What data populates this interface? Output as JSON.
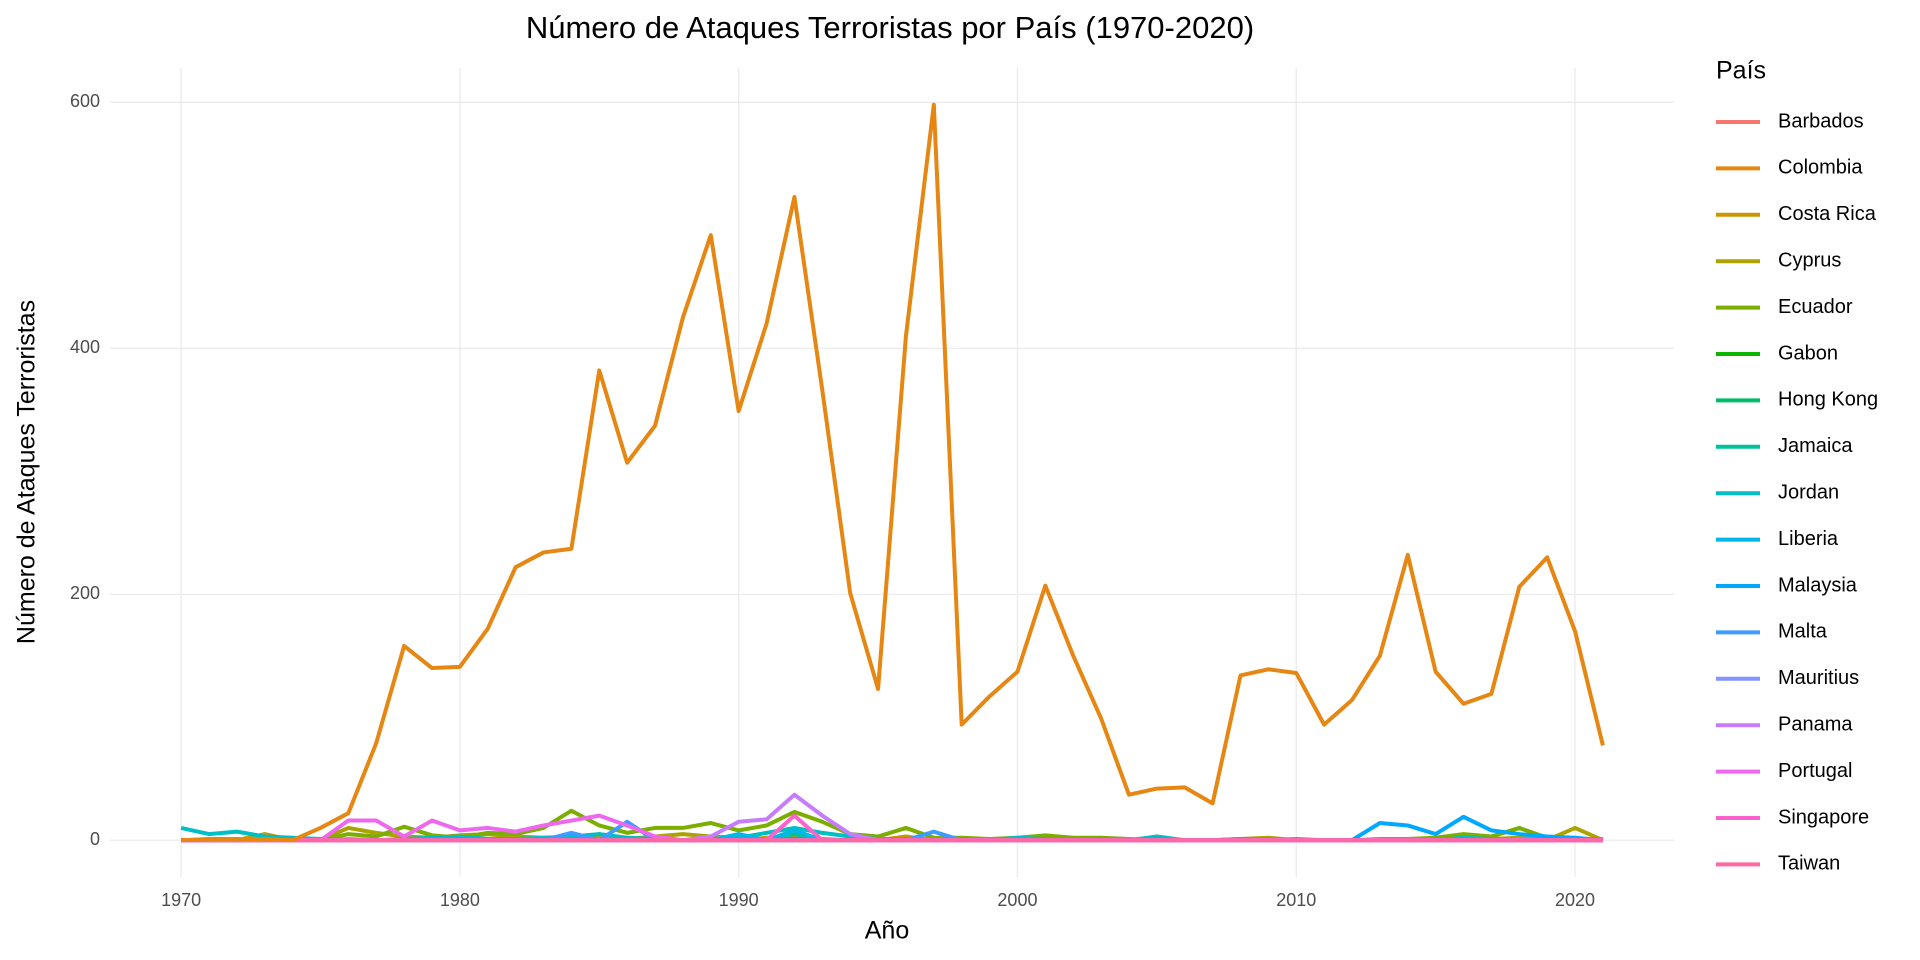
{
  "chart_data": {
    "type": "line",
    "title": "Número de Ataques Terroristas por País (1970-2020)",
    "x_label": "Año",
    "y_label": "Número de Ataques Terroristas",
    "legend_title": "País",
    "legend_position": "right",
    "grid": true,
    "xlim": [
      1967.45,
      2023.55
    ],
    "ylim": [
      -29.9,
      627.9
    ],
    "xticks": [
      1970,
      1980,
      1990,
      2000,
      2010,
      2020
    ],
    "yticks": [
      0,
      200,
      400,
      600
    ],
    "x": [
      1970,
      1971,
      1972,
      1973,
      1974,
      1975,
      1976,
      1977,
      1978,
      1979,
      1980,
      1981,
      1982,
      1983,
      1984,
      1985,
      1986,
      1987,
      1988,
      1989,
      1990,
      1991,
      1992,
      1993,
      1994,
      1995,
      1996,
      1997,
      1998,
      1999,
      2000,
      2001,
      2002,
      2003,
      2004,
      2005,
      2006,
      2007,
      2008,
      2009,
      2010,
      2011,
      2012,
      2013,
      2014,
      2015,
      2016,
      2017,
      2018,
      2019,
      2020,
      2021
    ],
    "series": [
      {
        "name": "Barbados",
        "color": "#F8766D",
        "values": [
          0,
          0,
          0,
          0,
          0,
          0,
          1,
          0,
          0,
          0,
          0,
          0,
          0,
          0,
          0,
          0,
          0,
          0,
          0,
          0,
          0,
          0,
          0,
          0,
          0,
          0,
          0,
          0,
          0,
          0,
          0,
          0,
          0,
          0,
          0,
          0,
          0,
          0,
          0,
          0,
          0,
          0,
          0,
          0,
          0,
          0,
          0,
          0,
          0,
          0,
          0,
          0
        ]
      },
      {
        "name": "Colombia",
        "color": "#E68613",
        "values": [
          0,
          1,
          1,
          1,
          0,
          10,
          22,
          79,
          158,
          140,
          141,
          172,
          222,
          234,
          237,
          382,
          307,
          337,
          425,
          492,
          349,
          420,
          523,
          366,
          201,
          123,
          410,
          598,
          94,
          117,
          137,
          207,
          150,
          99,
          37,
          42,
          43,
          30,
          134,
          139,
          136,
          94,
          114,
          150,
          232,
          137,
          111,
          119,
          206,
          230,
          170,
          77
        ]
      },
      {
        "name": "Costa Rica",
        "color": "#CD9600",
        "values": [
          0,
          0,
          0,
          5,
          0,
          0,
          0,
          0,
          0,
          0,
          0,
          0,
          0,
          0,
          0,
          5,
          0,
          0,
          0,
          0,
          0,
          2,
          3,
          0,
          0,
          0,
          3,
          0,
          0,
          0,
          0,
          0,
          0,
          0,
          0,
          0,
          0,
          0,
          0,
          0,
          0,
          0,
          0,
          0,
          0,
          0,
          0,
          0,
          0,
          0,
          0,
          0
        ]
      },
      {
        "name": "Cyprus",
        "color": "#ABA300",
        "values": [
          0,
          0,
          0,
          0,
          0,
          0,
          10,
          6,
          3,
          2,
          4,
          5,
          3,
          2,
          2,
          2,
          1,
          3,
          5,
          3,
          2,
          1,
          1,
          1,
          0,
          0,
          1,
          0,
          0,
          0,
          1,
          1,
          0,
          0,
          0,
          0,
          0,
          0,
          1,
          2,
          0,
          0,
          0,
          0,
          1,
          0,
          0,
          1,
          2,
          0,
          10,
          0
        ]
      },
      {
        "name": "Ecuador",
        "color": "#7CAE00",
        "values": [
          0,
          0,
          0,
          0,
          0,
          0,
          5,
          3,
          11,
          4,
          2,
          6,
          5,
          10,
          24,
          12,
          6,
          10,
          10,
          14,
          8,
          12,
          23,
          15,
          5,
          3,
          10,
          2,
          2,
          1,
          2,
          4,
          2,
          2,
          1,
          0,
          0,
          0,
          1,
          1,
          0,
          0,
          0,
          1,
          1,
          2,
          5,
          3,
          10,
          2,
          1,
          0
        ]
      },
      {
        "name": "Gabon",
        "color": "#0CB702",
        "values": [
          0,
          0,
          0,
          0,
          0,
          0,
          0,
          0,
          0,
          0,
          0,
          0,
          0,
          0,
          0,
          0,
          0,
          0,
          0,
          0,
          0,
          0,
          0,
          0,
          0,
          0,
          0,
          0,
          0,
          0,
          0,
          0,
          0,
          0,
          0,
          0,
          0,
          0,
          0,
          0,
          0,
          0,
          0,
          0,
          0,
          0,
          0,
          0,
          0,
          0,
          0,
          0
        ]
      },
      {
        "name": "Hong Kong",
        "color": "#00BE67",
        "values": [
          0,
          0,
          0,
          0,
          0,
          0,
          0,
          0,
          0,
          0,
          0,
          0,
          0,
          0,
          0,
          0,
          0,
          0,
          0,
          0,
          0,
          0,
          1,
          0,
          0,
          0,
          0,
          0,
          0,
          0,
          0,
          0,
          0,
          0,
          0,
          0,
          0,
          0,
          0,
          0,
          0,
          0,
          0,
          0,
          0,
          0,
          0,
          0,
          0,
          0,
          0,
          0
        ]
      },
      {
        "name": "Jamaica",
        "color": "#00C19A",
        "values": [
          0,
          0,
          0,
          0,
          0,
          0,
          0,
          0,
          0,
          0,
          2,
          0,
          0,
          0,
          0,
          0,
          0,
          0,
          0,
          0,
          0,
          0,
          5,
          0,
          0,
          0,
          0,
          0,
          0,
          0,
          0,
          0,
          0,
          0,
          0,
          0,
          0,
          0,
          0,
          0,
          0,
          0,
          0,
          0,
          0,
          0,
          0,
          0,
          0,
          0,
          0,
          0
        ]
      },
      {
        "name": "Jordan",
        "color": "#00BFC4",
        "values": [
          10,
          5,
          7,
          3,
          2,
          1,
          0,
          0,
          1,
          2,
          3,
          1,
          1,
          2,
          3,
          5,
          2,
          1,
          0,
          1,
          2,
          6,
          10,
          6,
          3,
          1,
          1,
          0,
          1,
          0,
          2,
          1,
          0,
          1,
          0,
          3,
          0,
          0,
          1,
          0,
          1,
          0,
          0,
          0,
          0,
          0,
          2,
          1,
          0,
          0,
          0,
          1
        ]
      },
      {
        "name": "Liberia",
        "color": "#00B8E7",
        "values": [
          0,
          0,
          0,
          0,
          0,
          0,
          0,
          0,
          0,
          0,
          0,
          0,
          0,
          0,
          0,
          0,
          0,
          0,
          0,
          0,
          5,
          0,
          8,
          0,
          0,
          0,
          0,
          0,
          0,
          0,
          0,
          0,
          0,
          0,
          0,
          0,
          0,
          0,
          0,
          0,
          0,
          0,
          0,
          0,
          0,
          0,
          0,
          0,
          0,
          0,
          0,
          0
        ]
      },
      {
        "name": "Malaysia",
        "color": "#00A9FF",
        "values": [
          0,
          0,
          0,
          0,
          0,
          0,
          0,
          0,
          0,
          0,
          0,
          0,
          0,
          0,
          0,
          0,
          0,
          0,
          0,
          0,
          0,
          0,
          0,
          0,
          0,
          0,
          0,
          0,
          0,
          0,
          0,
          0,
          0,
          0,
          0,
          0,
          0,
          0,
          0,
          0,
          0,
          0,
          0,
          14,
          12,
          5,
          19,
          8,
          5,
          3,
          2,
          0
        ]
      },
      {
        "name": "Malta",
        "color": "#3D9CFF",
        "values": [
          0,
          0,
          0,
          0,
          0,
          0,
          0,
          0,
          0,
          0,
          0,
          0,
          0,
          0,
          6,
          0,
          15,
          0,
          0,
          0,
          0,
          0,
          0,
          0,
          0,
          0,
          0,
          7,
          0,
          0,
          0,
          0,
          0,
          0,
          0,
          0,
          0,
          0,
          0,
          0,
          0,
          0,
          0,
          0,
          0,
          0,
          0,
          0,
          0,
          0,
          0,
          0
        ]
      },
      {
        "name": "Mauritius",
        "color": "#8494FF",
        "values": [
          0,
          0,
          0,
          0,
          0,
          0,
          0,
          0,
          0,
          0,
          0,
          0,
          0,
          0,
          0,
          0,
          0,
          0,
          0,
          0,
          0,
          0,
          0,
          0,
          0,
          0,
          0,
          0,
          0,
          0,
          0,
          0,
          0,
          0,
          0,
          0,
          0,
          0,
          0,
          0,
          0,
          0,
          0,
          0,
          0,
          0,
          0,
          0,
          0,
          0,
          0,
          0
        ]
      },
      {
        "name": "Panama",
        "color": "#C77CFF",
        "values": [
          0,
          0,
          0,
          0,
          0,
          0,
          0,
          0,
          0,
          0,
          0,
          0,
          0,
          0,
          0,
          0,
          0,
          0,
          0,
          3,
          15,
          17,
          37,
          20,
          5,
          0,
          0,
          0,
          0,
          0,
          0,
          0,
          0,
          0,
          0,
          0,
          0,
          0,
          0,
          0,
          0,
          0,
          0,
          0,
          0,
          0,
          0,
          0,
          0,
          0,
          0,
          0
        ]
      },
      {
        "name": "Portugal",
        "color": "#ED68ED",
        "values": [
          0,
          0,
          0,
          0,
          0,
          0,
          16,
          16,
          3,
          16,
          8,
          10,
          7,
          12,
          16,
          20,
          12,
          3,
          0,
          0,
          0,
          0,
          0,
          0,
          0,
          0,
          0,
          0,
          0,
          0,
          0,
          0,
          0,
          0,
          0,
          0,
          0,
          0,
          0,
          0,
          0,
          0,
          0,
          0,
          0,
          0,
          0,
          0,
          0,
          0,
          0,
          0
        ]
      },
      {
        "name": "Singapore",
        "color": "#FF61CC",
        "values": [
          0,
          0,
          0,
          0,
          0,
          0,
          0,
          0,
          0,
          0,
          0,
          0,
          0,
          0,
          0,
          0,
          0,
          0,
          0,
          0,
          0,
          0,
          20,
          0,
          0,
          0,
          0,
          0,
          0,
          0,
          0,
          0,
          0,
          0,
          0,
          0,
          0,
          0,
          0,
          0,
          0,
          0,
          0,
          0,
          0,
          0,
          0,
          0,
          0,
          0,
          0,
          0
        ]
      },
      {
        "name": "Taiwan",
        "color": "#FF68A1",
        "values": [
          0,
          0,
          0,
          0,
          0,
          0,
          0,
          0,
          0,
          0,
          0,
          0,
          0,
          0,
          0,
          0,
          0,
          0,
          0,
          0,
          0,
          0,
          0,
          0,
          0,
          0,
          0,
          0,
          0,
          0,
          0,
          0,
          0,
          0,
          0,
          0,
          0,
          0,
          0,
          0,
          0,
          0,
          0,
          0,
          0,
          0,
          0,
          0,
          0,
          0,
          0,
          0
        ]
      }
    ]
  }
}
